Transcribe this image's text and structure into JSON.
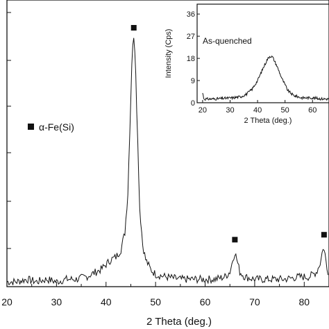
{
  "chart_data": [
    {
      "type": "line",
      "title": "",
      "xlabel": "2 Theta (deg.)",
      "ylabel": "",
      "xlim": [
        20,
        85
      ],
      "x_ticks": [
        20,
        30,
        40,
        50,
        60,
        70,
        80
      ],
      "grid": false,
      "legend": {
        "marker": "■",
        "label": "α-Fe(Si)",
        "placement": "left"
      },
      "series": [
        {
          "values": [
            {
              "x": 20,
              "y": 2
            },
            {
              "x": 22,
              "y": 2
            },
            {
              "x": 24,
              "y": 3
            },
            {
              "x": 26,
              "y": 2
            },
            {
              "x": 28,
              "y": 3
            },
            {
              "x": 30,
              "y": 2
            },
            {
              "x": 32,
              "y": 3
            },
            {
              "x": 34,
              "y": 3
            },
            {
              "x": 36,
              "y": 4
            },
            {
              "x": 38,
              "y": 6
            },
            {
              "x": 39,
              "y": 7
            },
            {
              "x": 40,
              "y": 9
            },
            {
              "x": 41,
              "y": 11
            },
            {
              "x": 42,
              "y": 12
            },
            {
              "x": 43,
              "y": 15
            },
            {
              "x": 43.8,
              "y": 22
            },
            {
              "x": 44.4,
              "y": 38
            },
            {
              "x": 44.9,
              "y": 70
            },
            {
              "x": 45.3,
              "y": 98
            },
            {
              "x": 45.6,
              "y": 100
            },
            {
              "x": 45.9,
              "y": 95
            },
            {
              "x": 46.3,
              "y": 65
            },
            {
              "x": 46.8,
              "y": 32
            },
            {
              "x": 47.4,
              "y": 17
            },
            {
              "x": 48,
              "y": 11
            },
            {
              "x": 49,
              "y": 7
            },
            {
              "x": 50,
              "y": 5
            },
            {
              "x": 52,
              "y": 4
            },
            {
              "x": 55,
              "y": 3
            },
            {
              "x": 58,
              "y": 3
            },
            {
              "x": 60,
              "y": 3
            },
            {
              "x": 62,
              "y": 3
            },
            {
              "x": 64,
              "y": 4
            },
            {
              "x": 65,
              "y": 6
            },
            {
              "x": 65.6,
              "y": 11
            },
            {
              "x": 66,
              "y": 14
            },
            {
              "x": 66.4,
              "y": 11
            },
            {
              "x": 67,
              "y": 6
            },
            {
              "x": 68,
              "y": 4
            },
            {
              "x": 70,
              "y": 3
            },
            {
              "x": 73,
              "y": 3
            },
            {
              "x": 76,
              "y": 3
            },
            {
              "x": 79,
              "y": 4
            },
            {
              "x": 81,
              "y": 4
            },
            {
              "x": 82.5,
              "y": 6
            },
            {
              "x": 83.3,
              "y": 10
            },
            {
              "x": 83.8,
              "y": 16
            },
            {
              "x": 84.2,
              "y": 13
            },
            {
              "x": 84.7,
              "y": 7
            },
            {
              "x": 85,
              "y": 5
            }
          ]
        }
      ],
      "peak_markers_x": [
        45.6,
        66,
        84
      ]
    },
    {
      "type": "line",
      "title": "",
      "annotation": "As-quenched",
      "xlabel": "2 Theta (deg.)",
      "ylabel": "Intensity (Cps)",
      "xlim": [
        18,
        66
      ],
      "ylim": [
        0,
        40
      ],
      "x_ticks": [
        20,
        30,
        40,
        50,
        60
      ],
      "y_ticks": [
        0,
        9,
        18,
        27,
        36
      ],
      "grid": false,
      "series": [
        {
          "values": [
            {
              "x": 20,
              "y": 4
            },
            {
              "x": 20.5,
              "y": 1.5
            },
            {
              "x": 22,
              "y": 1.5
            },
            {
              "x": 25,
              "y": 1.6
            },
            {
              "x": 28,
              "y": 1.8
            },
            {
              "x": 31,
              "y": 2
            },
            {
              "x": 34,
              "y": 2.5
            },
            {
              "x": 36,
              "y": 3.5
            },
            {
              "x": 38,
              "y": 5.5
            },
            {
              "x": 40,
              "y": 9
            },
            {
              "x": 42,
              "y": 14
            },
            {
              "x": 43.5,
              "y": 17.5
            },
            {
              "x": 44.5,
              "y": 19
            },
            {
              "x": 45.5,
              "y": 18.5
            },
            {
              "x": 47,
              "y": 15
            },
            {
              "x": 49,
              "y": 9.5
            },
            {
              "x": 51,
              "y": 5
            },
            {
              "x": 53,
              "y": 3
            },
            {
              "x": 56,
              "y": 2
            },
            {
              "x": 60,
              "y": 2
            },
            {
              "x": 63,
              "y": 1.6
            },
            {
              "x": 66,
              "y": 1.5
            }
          ]
        }
      ]
    }
  ]
}
